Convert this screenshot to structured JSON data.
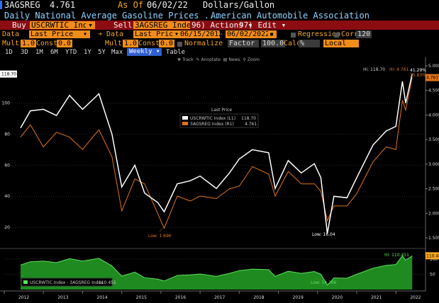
{
  "header": {
    "ticker": "3AGSREG",
    "last_value": "4.761",
    "as_of_label": "As Of",
    "as_of_date": "06/02/22",
    "units": "Dollars/Gallon",
    "description": "Daily National Average Gasoline Prices ...",
    "source": "American Automobile Association"
  },
  "command_bar": {
    "buy_label": "Buy",
    "buy_security": "USCRWTIC Ind",
    "sell_label": "Sell",
    "sell_security": "3AGSREG Inde:",
    "actions_num": "96)",
    "actions_label": "Actions",
    "edit_num": "97)",
    "edit_label": "Edit"
  },
  "params": {
    "data_label": "Data",
    "data1_value": "Last Price",
    "data2_value": "Last Price",
    "date_start": "06/15/2012",
    "date_end": "06/02/2022",
    "regression_label": "Regression",
    "corr_label": "Corr",
    "corr_value": "120",
    "mult_label": "Mult",
    "mult1_value": "1.0",
    "const_label": "Const",
    "const1_value": "0.0",
    "mult2_value": "1.0",
    "const2_value": "0.0",
    "normalize_label": "Normalize by",
    "normalize_value": "Factor",
    "normalize_factor": "100.0",
    "calc_label": "Calc",
    "calc_value": "%",
    "currency_value": "Local"
  },
  "ranges": [
    "1D",
    "3D",
    "1M",
    "6M",
    "YTD",
    "1Y",
    "5Y",
    "Max"
  ],
  "frequency": "Weekly",
  "table_label": "Table",
  "tools": [
    "Track",
    "Annotate",
    "News",
    "Zoom"
  ],
  "colors": {
    "wti": "#ffffff",
    "gas": "#e0731a",
    "ratio_fill": "#1f8a1f",
    "ratio_line": "#5ee05e",
    "amber": "#f5a623",
    "bar_red": "#8b0d12"
  },
  "chart_data": [
    {
      "type": "line",
      "legend_title": "Last Price",
      "series": [
        {
          "name": "USCRWTIC Index (L1)",
          "last": "118.70",
          "axis": "left",
          "x": [
            "2012-06",
            "2012-09",
            "2013-01",
            "2013-05",
            "2013-09",
            "2014-01",
            "2014-06",
            "2014-10",
            "2015-01",
            "2015-05",
            "2015-08",
            "2015-12",
            "2016-02",
            "2016-06",
            "2016-10",
            "2017-01",
            "2017-06",
            "2017-10",
            "2018-01",
            "2018-05",
            "2018-10",
            "2018-12",
            "2019-04",
            "2019-08",
            "2019-12",
            "2020-02",
            "2020-04",
            "2020-06",
            "2020-10",
            "2021-01",
            "2021-06",
            "2021-10",
            "2022-01",
            "2022-03",
            "2022-04",
            "2022-06"
          ],
          "values": [
            84,
            95,
            96,
            92,
            105,
            96,
            106,
            80,
            46,
            60,
            42,
            36,
            30,
            48,
            50,
            53,
            45,
            55,
            64,
            70,
            68,
            45,
            63,
            55,
            61,
            52,
            16.04,
            40,
            39,
            52,
            73,
            82,
            85,
            114,
            100,
            118.7
          ]
        },
        {
          "name": "3AGSREG Index (R1)",
          "last": "4.761",
          "axis": "right",
          "x": [
            "2012-06",
            "2012-09",
            "2013-01",
            "2013-05",
            "2013-09",
            "2014-01",
            "2014-06",
            "2014-10",
            "2015-01",
            "2015-05",
            "2015-08",
            "2015-12",
            "2016-02",
            "2016-06",
            "2016-10",
            "2017-01",
            "2017-06",
            "2017-10",
            "2018-01",
            "2018-05",
            "2018-10",
            "2018-12",
            "2019-04",
            "2019-08",
            "2019-12",
            "2020-02",
            "2020-04",
            "2020-06",
            "2020-10",
            "2021-01",
            "2021-06",
            "2021-10",
            "2022-01",
            "2022-03",
            "2022-04",
            "2022-06"
          ],
          "values": [
            3.55,
            3.8,
            3.35,
            3.65,
            3.55,
            3.3,
            3.7,
            3.15,
            2.05,
            2.7,
            2.6,
            2.0,
            1.696,
            2.35,
            2.25,
            2.35,
            2.3,
            2.5,
            2.55,
            2.95,
            2.8,
            2.35,
            2.85,
            2.6,
            2.6,
            2.45,
            1.85,
            2.15,
            2.15,
            2.4,
            3.05,
            3.35,
            3.3,
            4.3,
            4.1,
            4.761
          ]
        }
      ],
      "annotations": [
        {
          "text": "Hi: 118.70",
          "series": "USCRWTIC Index (L1)"
        },
        {
          "text": "Hi: 4.761",
          "series": "3AGSREG Index (R1)"
        },
        {
          "text": "41.29%",
          "series": "USCRWTIC Index (L1)"
        },
        {
          "text": "35.83%",
          "series": "3AGSREG Index (R1)"
        },
        {
          "text": "Low: 1.696",
          "series": "3AGSREG Index (R1)"
        },
        {
          "text": "Low: 16.04",
          "series": "USCRWTIC Index (L1)"
        }
      ],
      "left_ticks": [
        "20",
        "40",
        "60",
        "80",
        "100"
      ],
      "left_marker": "118.70",
      "ylim_left": [
        10,
        124
      ],
      "right_ticks": [
        "1.500",
        "2.000",
        "2.500",
        "3.000",
        "3.500",
        "4.000",
        "4.500",
        "5.000"
      ],
      "right_marker": "4.761",
      "ylim_right": [
        1.4,
        5.0
      ],
      "x_ticks": [
        "2012",
        "2013",
        "2014",
        "2015",
        "2016",
        "2017",
        "2018",
        "2019",
        "2020",
        "2021",
        "2022"
      ]
    },
    {
      "type": "area",
      "series": [
        {
          "name": "USCRWTIC Index - 3AGSREG Index",
          "last": "110.451",
          "x": [
            "2012-06",
            "2012-09",
            "2013-01",
            "2013-05",
            "2013-09",
            "2014-01",
            "2014-06",
            "2014-10",
            "2015-01",
            "2015-05",
            "2015-08",
            "2015-12",
            "2016-02",
            "2016-06",
            "2016-10",
            "2017-01",
            "2017-06",
            "2017-10",
            "2018-01",
            "2018-05",
            "2018-10",
            "2018-12",
            "2019-04",
            "2019-08",
            "2019-12",
            "2020-02",
            "2020-04",
            "2020-06",
            "2020-10",
            "2021-01",
            "2021-06",
            "2021-10",
            "2022-01",
            "2022-03",
            "2022-04",
            "2022-06"
          ],
          "values": [
            80,
            91,
            93,
            88,
            101,
            93,
            102,
            77,
            44,
            57,
            39,
            34,
            28,
            46,
            48,
            51,
            43,
            53,
            62,
            67,
            65,
            43,
            60,
            53,
            59,
            50,
            14.266,
            38,
            37,
            50,
            70,
            79,
            82,
            110,
            96,
            110.451
          ]
        }
      ],
      "annotations": [
        {
          "text": "Hi: 110.451"
        },
        {
          "text": "Low: 14.266"
        }
      ],
      "right_ticks": [
        "50",
        "100"
      ],
      "right_marker": "110.45",
      "ylim": [
        0,
        125
      ]
    }
  ]
}
